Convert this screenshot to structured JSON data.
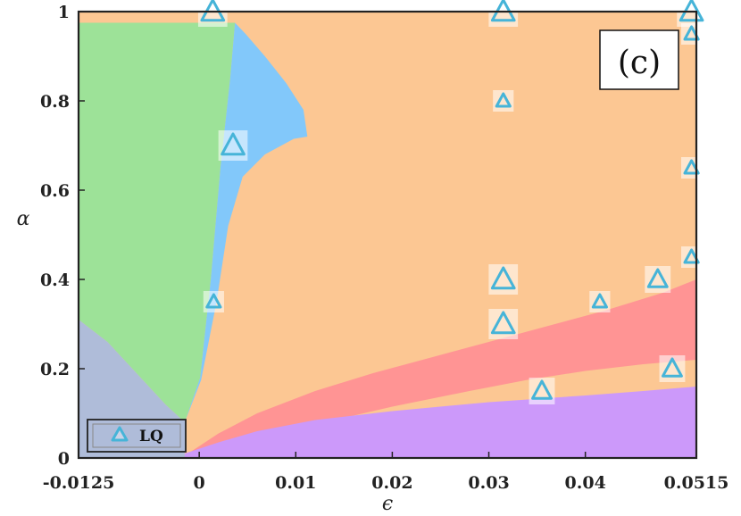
{
  "chart_data": {
    "type": "scatter",
    "title": "",
    "panel_label": "(c)",
    "xlabel": "ϵ",
    "ylabel": "α",
    "xlim": [
      -0.0125,
      0.0515
    ],
    "ylim": [
      0,
      1
    ],
    "xticks": [
      -0.0125,
      0,
      0.01,
      0.02,
      0.03,
      0.04,
      0.0515
    ],
    "xtick_labels": [
      "-0.0125",
      "0",
      "0.01",
      "0.02",
      "0.03",
      "0.04",
      "0.0515"
    ],
    "yticks": [
      0,
      0.2,
      0.4,
      0.6,
      0.8,
      1
    ],
    "ytick_labels": [
      "0",
      "0.2",
      "0.4",
      "0.6",
      "0.8",
      "1"
    ],
    "grid": false,
    "legend": {
      "placement": "bottom-left",
      "entries": [
        {
          "label": "LQ",
          "marker": "triangle"
        }
      ]
    },
    "regions": [
      {
        "color": "#fcc793",
        "boundary": [
          [
            -0.0125,
            0
          ],
          [
            0.0515,
            0
          ],
          [
            0.0515,
            1
          ],
          [
            -0.0125,
            1
          ]
        ]
      },
      {
        "color": "#9de298",
        "boundary": [
          [
            -0.0125,
            0.31
          ],
          [
            -0.0095,
            0.26
          ],
          [
            -0.0065,
            0.19
          ],
          [
            -0.0035,
            0.12
          ],
          [
            -0.0015,
            0.08
          ],
          [
            0.0001,
            0.18
          ],
          [
            0.0012,
            0.4
          ],
          [
            0.0022,
            0.65
          ],
          [
            0.0032,
            0.85
          ],
          [
            0.0037,
            0.975
          ],
          [
            -0.0125,
            0.975
          ]
        ]
      },
      {
        "color": "#82c8fa",
        "boundary": [
          [
            -0.0015,
            0.08
          ],
          [
            0.0002,
            0.175
          ],
          [
            0.0018,
            0.35
          ],
          [
            0.003,
            0.52
          ],
          [
            0.0045,
            0.63
          ],
          [
            0.0068,
            0.68
          ],
          [
            0.0098,
            0.715
          ],
          [
            0.0112,
            0.72
          ],
          [
            0.0108,
            0.78
          ],
          [
            0.009,
            0.84
          ],
          [
            0.0068,
            0.9
          ],
          [
            0.0048,
            0.95
          ],
          [
            0.0037,
            0.975
          ],
          [
            0.0032,
            0.85
          ],
          [
            0.0022,
            0.65
          ],
          [
            0.0012,
            0.4
          ],
          [
            0.0001,
            0.18
          ]
        ]
      },
      {
        "color": "#afbcd9",
        "boundary": [
          [
            -0.0125,
            0
          ],
          [
            -0.0015,
            0
          ],
          [
            -0.0015,
            0.08
          ],
          [
            -0.0035,
            0.12
          ],
          [
            -0.0065,
            0.19
          ],
          [
            -0.0095,
            0.26
          ],
          [
            -0.0125,
            0.31
          ]
        ]
      },
      {
        "color": "#ff9494",
        "boundary": [
          [
            -0.0015,
            0.005
          ],
          [
            0.002,
            0.055
          ],
          [
            0.006,
            0.1
          ],
          [
            0.012,
            0.15
          ],
          [
            0.018,
            0.19
          ],
          [
            0.024,
            0.225
          ],
          [
            0.03,
            0.26
          ],
          [
            0.036,
            0.295
          ],
          [
            0.042,
            0.33
          ],
          [
            0.048,
            0.37
          ],
          [
            0.0515,
            0.4
          ],
          [
            0.0515,
            0.22
          ],
          [
            0.046,
            0.21
          ],
          [
            0.04,
            0.195
          ],
          [
            0.034,
            0.175
          ],
          [
            0.028,
            0.15
          ],
          [
            0.02,
            0.115
          ],
          [
            0.012,
            0.075
          ],
          [
            0.006,
            0.04
          ],
          [
            0.002,
            0.02
          ]
        ]
      },
      {
        "color": "#cc99fa",
        "boundary": [
          [
            -0.0015,
            0
          ],
          [
            0.0515,
            0
          ],
          [
            0.0515,
            0.16
          ],
          [
            0.046,
            0.15
          ],
          [
            0.04,
            0.14
          ],
          [
            0.03,
            0.125
          ],
          [
            0.02,
            0.105
          ],
          [
            0.012,
            0.085
          ],
          [
            0.006,
            0.06
          ],
          [
            0.002,
            0.035
          ],
          [
            -0.0015,
            0.01
          ]
        ]
      }
    ],
    "series": [
      {
        "marker": "triangle",
        "points": [
          {
            "x": 0.0014,
            "y": 1.0,
            "size": "large"
          },
          {
            "x": 0.0315,
            "y": 1.0,
            "size": "large"
          },
          {
            "x": 0.051,
            "y": 1.0,
            "size": "large"
          },
          {
            "x": 0.051,
            "y": 0.95,
            "size": "small"
          },
          {
            "x": 0.0315,
            "y": 0.8,
            "size": "small"
          },
          {
            "x": 0.0035,
            "y": 0.7,
            "size": "large"
          },
          {
            "x": 0.051,
            "y": 0.65,
            "size": "small"
          },
          {
            "x": 0.051,
            "y": 0.45,
            "size": "small"
          },
          {
            "x": 0.0315,
            "y": 0.4,
            "size": "large"
          },
          {
            "x": 0.0475,
            "y": 0.4,
            "size": "medium"
          },
          {
            "x": 0.0415,
            "y": 0.35,
            "size": "small"
          },
          {
            "x": 0.0015,
            "y": 0.35,
            "size": "small"
          },
          {
            "x": 0.0315,
            "y": 0.3,
            "size": "large"
          },
          {
            "x": 0.049,
            "y": 0.2,
            "size": "medium"
          },
          {
            "x": 0.0355,
            "y": 0.15,
            "size": "medium"
          }
        ]
      }
    ],
    "colors": {
      "marker": "#46b4d8",
      "axis": "#222222"
    }
  }
}
